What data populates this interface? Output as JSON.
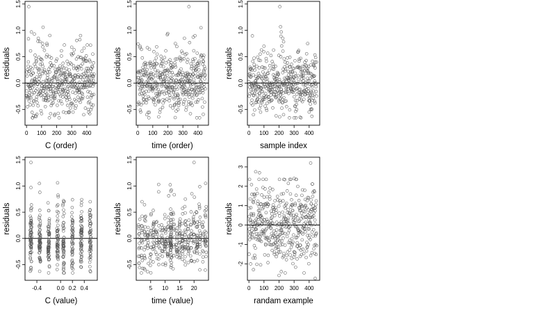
{
  "chart_data": [
    {
      "type": "scatter",
      "xlabel": "C (order)",
      "ylabel": "residuals",
      "xlim": [
        -10,
        470
      ],
      "ylim": [
        -0.8,
        1.55
      ],
      "xticks": [
        {
          "value": 0,
          "label": "0"
        },
        {
          "value": 100,
          "label": "100"
        },
        {
          "value": 200,
          "label": "200"
        },
        {
          "value": 300,
          "label": "300"
        },
        {
          "value": 400,
          "label": "400"
        }
      ],
      "yticks": [
        {
          "value": -0.5,
          "label": "-0.5"
        },
        {
          "value": 0,
          "label": "0.0"
        },
        {
          "value": 0.5,
          "label": "0.5"
        },
        {
          "value": 1.0,
          "label": "1.0"
        },
        {
          "value": 1.5,
          "label": "1.5"
        }
      ],
      "reference_line_y": 0,
      "marker": "open-circle",
      "grid": false,
      "gen": {
        "mode": "index",
        "n": 450,
        "seed": 11,
        "sd": 0.27,
        "skew": 0.35
      },
      "points": [
        {
          "x": 15,
          "y": 1.45
        },
        {
          "x": 32,
          "y": 0.97
        },
        {
          "x": 52,
          "y": 0.93
        },
        {
          "x": 78,
          "y": 0.85
        },
        {
          "x": 110,
          "y": 1.06
        },
        {
          "x": 135,
          "y": 0.75
        },
        {
          "x": 300,
          "y": 0.68
        },
        {
          "x": 425,
          "y": 0.72
        },
        {
          "x": 440,
          "y": 0.55
        },
        {
          "x": 60,
          "y": -0.62
        },
        {
          "x": 160,
          "y": -0.58
        },
        {
          "x": 245,
          "y": -0.55
        },
        {
          "x": 380,
          "y": -0.6
        },
        {
          "x": 420,
          "y": -0.58
        }
      ]
    },
    {
      "type": "scatter",
      "xlabel": "time (order)",
      "ylabel": "residuals",
      "xlim": [
        -10,
        470
      ],
      "ylim": [
        -0.8,
        1.55
      ],
      "xticks": [
        {
          "value": 0,
          "label": "0"
        },
        {
          "value": 100,
          "label": "100"
        },
        {
          "value": 200,
          "label": "200"
        },
        {
          "value": 300,
          "label": "300"
        },
        {
          "value": 400,
          "label": "400"
        }
      ],
      "yticks": [
        {
          "value": -0.5,
          "label": "-0.5"
        },
        {
          "value": 0,
          "label": "0.0"
        },
        {
          "value": 0.5,
          "label": "0.5"
        },
        {
          "value": 1.0,
          "label": "1.0"
        },
        {
          "value": 1.5,
          "label": "1.5"
        }
      ],
      "reference_line_y": 0,
      "marker": "open-circle",
      "grid": false,
      "gen": {
        "mode": "index",
        "n": 450,
        "seed": 23,
        "sd": 0.26,
        "skew": 0.35
      },
      "points": [
        {
          "x": 340,
          "y": 1.45
        },
        {
          "x": 420,
          "y": 1.05
        },
        {
          "x": 310,
          "y": 0.85
        },
        {
          "x": 15,
          "y": 0.7
        },
        {
          "x": 250,
          "y": 0.75
        },
        {
          "x": 380,
          "y": 0.9
        },
        {
          "x": 20,
          "y": -0.55
        },
        {
          "x": 150,
          "y": -0.5
        },
        {
          "x": 350,
          "y": -0.58
        },
        {
          "x": 60,
          "y": -0.6
        }
      ]
    },
    {
      "type": "scatter",
      "xlabel": "sample index",
      "ylabel": "residuals",
      "xlim": [
        -10,
        470
      ],
      "ylim": [
        -0.8,
        1.55
      ],
      "xticks": [
        {
          "value": 0,
          "label": "0"
        },
        {
          "value": 100,
          "label": "100"
        },
        {
          "value": 200,
          "label": "200"
        },
        {
          "value": 300,
          "label": "300"
        },
        {
          "value": 400,
          "label": "400"
        }
      ],
      "yticks": [
        {
          "value": -0.5,
          "label": "-0.5"
        },
        {
          "value": 0,
          "label": "0.0"
        },
        {
          "value": 0.5,
          "label": "0.5"
        },
        {
          "value": 1.0,
          "label": "1.0"
        },
        {
          "value": 1.5,
          "label": "1.5"
        }
      ],
      "reference_line_y": 0,
      "marker": "open-circle",
      "grid": false,
      "gen": {
        "mode": "index",
        "n": 450,
        "seed": 37,
        "sd": 0.26,
        "skew": 0.35
      },
      "points": [
        {
          "x": 205,
          "y": 1.45
        },
        {
          "x": 210,
          "y": 1.07
        },
        {
          "x": 215,
          "y": 0.97
        },
        {
          "x": 225,
          "y": 0.85
        },
        {
          "x": 100,
          "y": 0.7
        },
        {
          "x": 390,
          "y": 0.75
        },
        {
          "x": 30,
          "y": -0.6
        },
        {
          "x": 230,
          "y": -0.6
        },
        {
          "x": 340,
          "y": -0.65
        },
        {
          "x": 400,
          "y": -0.55
        }
      ]
    },
    {
      "type": "scatter",
      "xlabel": "C (value)",
      "ylabel": "residuals",
      "xlim": [
        -0.6,
        0.62
      ],
      "ylim": [
        -0.8,
        1.55
      ],
      "xticks": [
        {
          "value": -0.4,
          "label": "-0.4"
        },
        {
          "value": 0.0,
          "label": "0.0"
        },
        {
          "value": 0.2,
          "label": "0.2"
        },
        {
          "value": 0.4,
          "label": "0.4"
        }
      ],
      "yticks": [
        {
          "value": -0.5,
          "label": "-0.5"
        },
        {
          "value": 0,
          "label": "0.0"
        },
        {
          "value": 0.5,
          "label": "0.5"
        },
        {
          "value": 1.0,
          "label": "1.0"
        },
        {
          "value": 1.5,
          "label": "1.5"
        }
      ],
      "reference_line_y": 0,
      "marker": "open-circle",
      "grid": false,
      "gen": {
        "mode": "groups",
        "n": 450,
        "seed": 53,
        "sd": 0.27,
        "skew": 0.35,
        "jitter": 0.012,
        "groups": [
          -0.5,
          -0.35,
          -0.2,
          -0.05,
          0.05,
          0.2,
          0.35,
          0.5
        ]
      },
      "points": [
        {
          "x": -0.5,
          "y": 1.45
        },
        {
          "x": -0.5,
          "y": 0.97
        },
        {
          "x": -0.35,
          "y": 0.88
        },
        {
          "x": -0.05,
          "y": 1.06
        },
        {
          "x": 0.05,
          "y": 0.72
        },
        {
          "x": 0.5,
          "y": 0.7
        },
        {
          "x": -0.5,
          "y": -0.6
        },
        {
          "x": 0.05,
          "y": -0.6
        },
        {
          "x": 0.35,
          "y": -0.55
        },
        {
          "x": 0.5,
          "y": -0.62
        }
      ]
    },
    {
      "type": "scatter",
      "xlabel": "time (value)",
      "ylabel": "residuals",
      "xlim": [
        0,
        25
      ],
      "ylim": [
        -0.8,
        1.55
      ],
      "xticks": [
        {
          "value": 5,
          "label": "5"
        },
        {
          "value": 10,
          "label": "10"
        },
        {
          "value": 15,
          "label": "15"
        },
        {
          "value": 20,
          "label": "20"
        }
      ],
      "yticks": [
        {
          "value": -0.5,
          "label": "-0.5"
        },
        {
          "value": 0,
          "label": "0.0"
        },
        {
          "value": 0.5,
          "label": "0.5"
        },
        {
          "value": 1.0,
          "label": "1.0"
        },
        {
          "value": 1.5,
          "label": "1.5"
        }
      ],
      "reference_line_y": 0,
      "marker": "open-circle",
      "grid": false,
      "gen": {
        "mode": "groups",
        "n": 450,
        "seed": 71,
        "sd": 0.27,
        "skew": 0.35,
        "jitter": 0.25,
        "groups": [
          1,
          2,
          3,
          4,
          5,
          6,
          7,
          8,
          9,
          10,
          11,
          12,
          12,
          12,
          13,
          14,
          15,
          16,
          17,
          18,
          19,
          20,
          21,
          22,
          23,
          24
        ]
      },
      "points": [
        {
          "x": 20,
          "y": 1.45
        },
        {
          "x": 24,
          "y": 1.05
        },
        {
          "x": 12,
          "y": 0.9
        },
        {
          "x": 2,
          "y": 0.7
        },
        {
          "x": 17,
          "y": 0.75
        },
        {
          "x": 3,
          "y": -0.6
        },
        {
          "x": 12,
          "y": -0.55
        },
        {
          "x": 22,
          "y": -0.6
        }
      ]
    },
    {
      "type": "scatter",
      "xlabel": "randam example",
      "ylabel": "residuals",
      "xlim": [
        -10,
        470
      ],
      "ylim": [
        -2.85,
        3.5
      ],
      "xticks": [
        {
          "value": 0,
          "label": "0"
        },
        {
          "value": 100,
          "label": "100"
        },
        {
          "value": 200,
          "label": "200"
        },
        {
          "value": 300,
          "label": "300"
        },
        {
          "value": 400,
          "label": "400"
        }
      ],
      "yticks": [
        {
          "value": -2,
          "label": "-2"
        },
        {
          "value": -1,
          "label": "-1"
        },
        {
          "value": 0,
          "label": "0"
        },
        {
          "value": 1,
          "label": "1"
        },
        {
          "value": 2,
          "label": "2"
        },
        {
          "value": 3,
          "label": "3"
        }
      ],
      "reference_line_y": 0,
      "marker": "open-circle",
      "grid": false,
      "gen": {
        "mode": "index",
        "n": 450,
        "seed": 97,
        "sd": 1.0,
        "skew": 0.0
      },
      "points": [
        {
          "x": 410,
          "y": 3.2
        },
        {
          "x": 45,
          "y": 2.75
        },
        {
          "x": 70,
          "y": 2.7
        },
        {
          "x": 300,
          "y": 2.4
        },
        {
          "x": 200,
          "y": -2.6
        },
        {
          "x": 440,
          "y": -2.75
        },
        {
          "x": 30,
          "y": -2.3
        },
        {
          "x": 215,
          "y": -2.4
        }
      ]
    }
  ]
}
